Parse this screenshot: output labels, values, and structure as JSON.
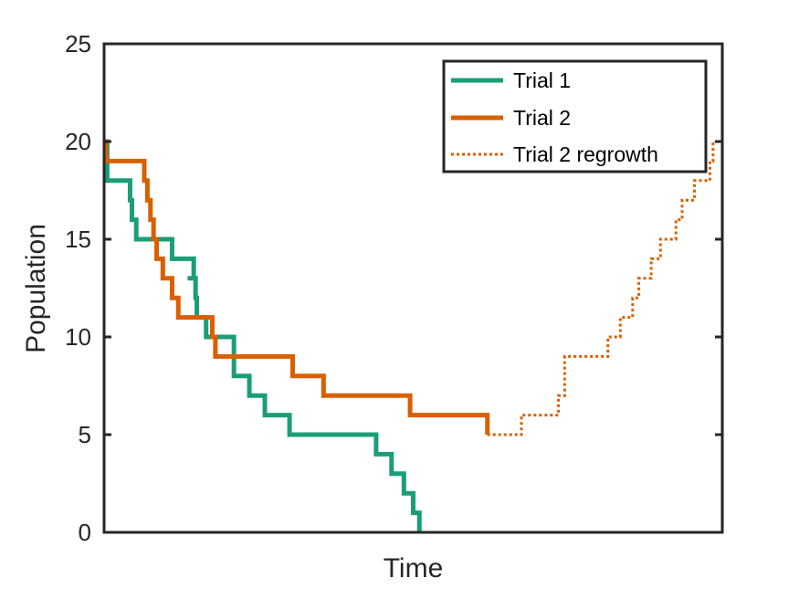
{
  "chart_data": {
    "type": "line",
    "xlabel": "Time",
    "ylabel": "Population",
    "ylim": [
      0,
      25
    ],
    "xlim": [
      0,
      100
    ],
    "y_ticks": [
      "0",
      "5",
      "10",
      "15",
      "20",
      "25"
    ],
    "x_ticks": [],
    "grid": false,
    "legend_position": "top-right",
    "series": [
      {
        "name": "Trial 1",
        "color": "#1b9e77",
        "style": "solid",
        "x": [
          0,
          0.5,
          4,
          4.2,
          4.5,
          4.7,
          5.2,
          5.4,
          5.8,
          5.6,
          7,
          10.5,
          11,
          13,
          14.5,
          13.5,
          14.8,
          15,
          16.5,
          17,
          20,
          21,
          23.5,
          25,
          26,
          30,
          34,
          37,
          38,
          44,
          45,
          46.5,
          47,
          48.5,
          50,
          51
        ],
        "y": [
          20,
          18,
          18,
          17,
          16,
          16,
          15,
          15,
          15,
          15,
          15,
          15,
          14,
          14,
          13,
          13,
          12,
          11,
          10,
          10,
          10,
          8,
          7,
          7,
          6,
          5,
          5,
          5,
          5,
          4,
          4,
          3,
          3,
          2,
          1,
          0
        ]
      },
      {
        "name": "Trial 2",
        "color": "#d95f02",
        "style": "solid",
        "x": [
          0,
          0.3,
          6,
          6.5,
          7,
          7.5,
          8,
          8.5,
          9.5,
          11,
          12,
          13,
          14.5,
          17.5,
          18,
          30.5,
          35.5,
          39,
          43,
          49.5,
          62
        ],
        "y": [
          20,
          19,
          19,
          18,
          17,
          16,
          15,
          14,
          13,
          12,
          11,
          11,
          11,
          10,
          9,
          8,
          7,
          7,
          7,
          6,
          5
        ]
      },
      {
        "name": "Trial 2 regrowth",
        "color": "#d95f02",
        "style": "dotted",
        "x": [
          62,
          67,
          67.5,
          72.5,
          73.5,
          74.5,
          81,
          81.5,
          83,
          83.5,
          85,
          85.5,
          86.5,
          88.5,
          90,
          92,
          92.5,
          93.5,
          95.5,
          96.5,
          98,
          98.5,
          100
        ],
        "y": [
          5,
          5,
          6,
          6,
          7,
          9,
          9,
          10,
          10,
          11,
          11,
          12,
          13,
          14,
          15,
          15,
          16,
          17,
          18,
          18,
          19,
          20,
          21
        ]
      }
    ]
  }
}
